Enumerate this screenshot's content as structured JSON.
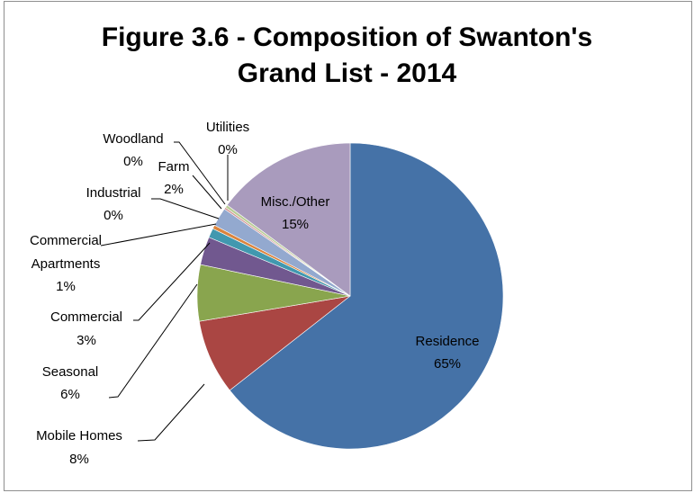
{
  "chart_data": {
    "type": "pie",
    "title": "Figure 3.6 - Composition of Swanton's Grand List - 2014",
    "title_lines": [
      "Figure 3.6 - Composition of Swanton's",
      "Grand List - 2014"
    ],
    "legend": "none",
    "slices": [
      {
        "name": "Residence",
        "label_lines": [
          "Residence"
        ],
        "value": 65,
        "percent_label": "65%",
        "color": "#4572a7"
      },
      {
        "name": "Mobile Homes",
        "label_lines": [
          "Mobile Homes"
        ],
        "value": 8,
        "percent_label": "8%",
        "color": "#aa4643"
      },
      {
        "name": "Seasonal",
        "label_lines": [
          "Seasonal"
        ],
        "value": 6,
        "percent_label": "6%",
        "color": "#89a54e"
      },
      {
        "name": "Commercial",
        "label_lines": [
          "Commercial"
        ],
        "value": 3,
        "percent_label": "3%",
        "color": "#71588f"
      },
      {
        "name": "Commercial Apartments",
        "label_lines": [
          "Commercial",
          "Apartments"
        ],
        "value": 1,
        "percent_label": "1%",
        "color": "#4198af"
      },
      {
        "name": "Industrial",
        "label_lines": [
          "Industrial"
        ],
        "value": 0.4,
        "percent_label": "0%",
        "color": "#db843d"
      },
      {
        "name": "Farm",
        "label_lines": [
          "Farm"
        ],
        "value": 2,
        "percent_label": "2%",
        "color": "#93a9cf"
      },
      {
        "name": "Woodland",
        "label_lines": [
          "Woodland"
        ],
        "value": 0.2,
        "percent_label": "0%",
        "color": "#d19392"
      },
      {
        "name": "Utilities",
        "label_lines": [
          "Utilities"
        ],
        "value": 0.3,
        "percent_label": "0%",
        "color": "#b9cd96"
      },
      {
        "name": "Misc./Other",
        "label_lines": [
          "Misc./Other"
        ],
        "value": 15,
        "percent_label": "15%",
        "color": "#a99bbd"
      }
    ]
  }
}
